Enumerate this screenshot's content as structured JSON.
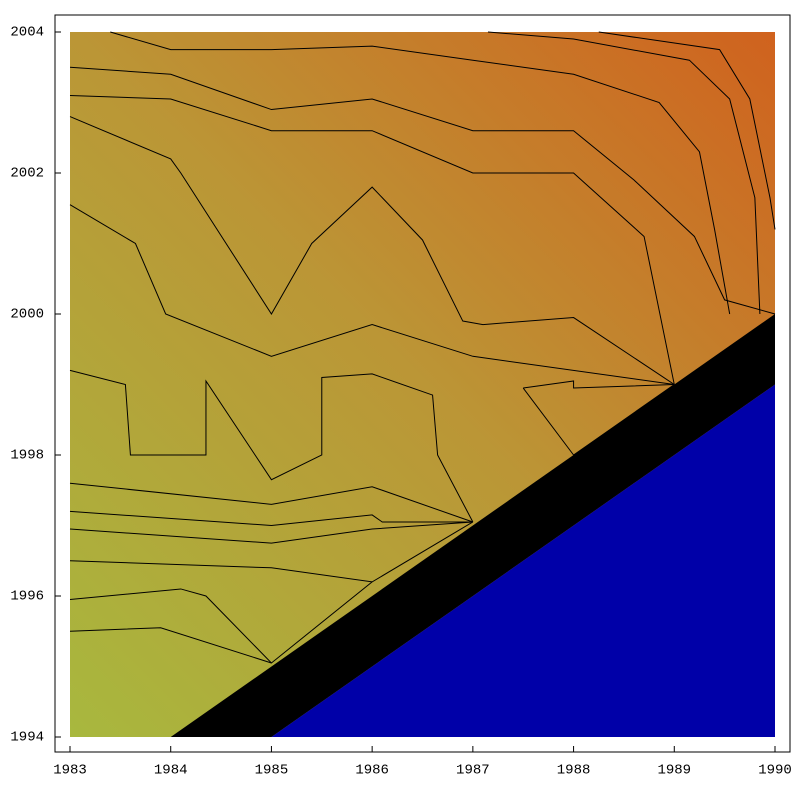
{
  "chart_data": {
    "type": "contour",
    "xlim": [
      1983,
      1990
    ],
    "ylim": [
      1994,
      2004
    ],
    "xticks": [
      1983,
      1984,
      1985,
      1986,
      1987,
      1988,
      1989,
      1990
    ],
    "yticks": [
      1994,
      1996,
      1998,
      2000,
      2002,
      2004
    ],
    "colors": [
      "#a8b83e",
      "#bb9636",
      "#d0621e"
    ],
    "line_color": "#000000",
    "regions": [
      {
        "color": "#000000",
        "x": [
          1984,
          1990,
          1990,
          1985
        ],
        "y": [
          1994,
          2000,
          1999,
          1994
        ]
      },
      {
        "color": "#0000a8",
        "x": [
          1985,
          1990,
          1990
        ],
        "y": [
          1994,
          1999,
          1994
        ]
      }
    ],
    "contours": [
      {
        "x": [
          1987.15,
          1988,
          1989.15,
          1989.55,
          1989.8,
          1989.85
        ],
        "y": [
          2004,
          2003.9,
          2003.6,
          2003.05,
          2001.65,
          2000
        ]
      },
      {
        "x": [
          1988.25,
          1989.45,
          1989.75,
          1989.95,
          1990
        ],
        "y": [
          2004,
          2003.75,
          2003.05,
          2001.65,
          2001.2
        ]
      },
      {
        "x": [
          1983.4,
          1984,
          1985,
          1986,
          1987,
          1988,
          1988.85,
          1989.25,
          1989.4,
          1989.55
        ],
        "y": [
          2004,
          2003.75,
          2003.75,
          2003.8,
          2003.6,
          2003.4,
          2003,
          2002.3,
          2001.2,
          2000
        ]
      },
      {
        "x": [
          1983,
          1984,
          1985,
          1986,
          1987,
          1988,
          1988.6,
          1989.2,
          1989.5,
          1990
        ],
        "y": [
          2003.5,
          2003.4,
          2002.9,
          2003.05,
          2002.6,
          2002.6,
          2001.9,
          2001.1,
          2000.2,
          2000
        ]
      },
      {
        "x": [
          1983,
          1984,
          1985,
          1986,
          1987,
          1988,
          1988.7,
          1989
        ],
        "y": [
          2003.1,
          2003.05,
          2002.6,
          2002.6,
          2002,
          2002,
          2001.1,
          1999
        ]
      },
      {
        "x": [
          1983,
          1984,
          1984.1,
          1985,
          1985.4,
          1986,
          1986.5,
          1986.9,
          1987.1,
          1988,
          1989
        ],
        "y": [
          2002.8,
          2002.2,
          2002,
          2000,
          2001,
          2001.8,
          2001.05,
          1999.9,
          1999.85,
          1999.95,
          1999
        ]
      },
      {
        "x": [
          1983,
          1983.65,
          1983.95,
          1985,
          1986,
          1987,
          1989
        ],
        "y": [
          2001.55,
          2001,
          2000,
          1999.4,
          1999.85,
          1999.4,
          1999
        ]
      },
      {
        "x": [
          1983,
          1983.55,
          1983.6,
          1984.35,
          1984.35,
          1985,
          1985.5,
          1985.5,
          1986,
          1986.6,
          1986.65,
          1987
        ],
        "y": [
          1999.2,
          1999,
          1998,
          1998,
          1999.05,
          1997.65,
          1998,
          1999.1,
          1999.15,
          1998.85,
          1998,
          1997.05
        ]
      },
      {
        "x": [
          1983,
          1985,
          1986,
          1987
        ],
        "y": [
          1997.6,
          1997.3,
          1997.55,
          1997.05
        ]
      },
      {
        "x": [
          1983,
          1985,
          1986,
          1986.1,
          1987
        ],
        "y": [
          1997.2,
          1997,
          1997.15,
          1997.05,
          1997.05
        ]
      },
      {
        "x": [
          1983,
          1985,
          1986,
          1987
        ],
        "y": [
          1996.95,
          1996.75,
          1996.95,
          1997.05
        ]
      },
      {
        "x": [
          1983,
          1985,
          1986,
          1987
        ],
        "y": [
          1996.5,
          1996.4,
          1996.2,
          1997.05
        ]
      },
      {
        "x": [
          1983,
          1984.1,
          1984.35,
          1985,
          1986
        ],
        "y": [
          1995.95,
          1996.1,
          1996,
          1995.05,
          1996.2
        ]
      },
      {
        "x": [
          1983,
          1983.9,
          1985
        ],
        "y": [
          1995.5,
          1995.55,
          1995.05
        ]
      },
      {
        "x": [
          1987.5,
          1988,
          1988,
          1989
        ],
        "y": [
          1998.95,
          1999.05,
          1998.95,
          1999
        ]
      },
      {
        "x": [
          1987.5,
          1988,
          1989
        ],
        "y": [
          1998.95,
          1998,
          1999
        ]
      }
    ]
  }
}
